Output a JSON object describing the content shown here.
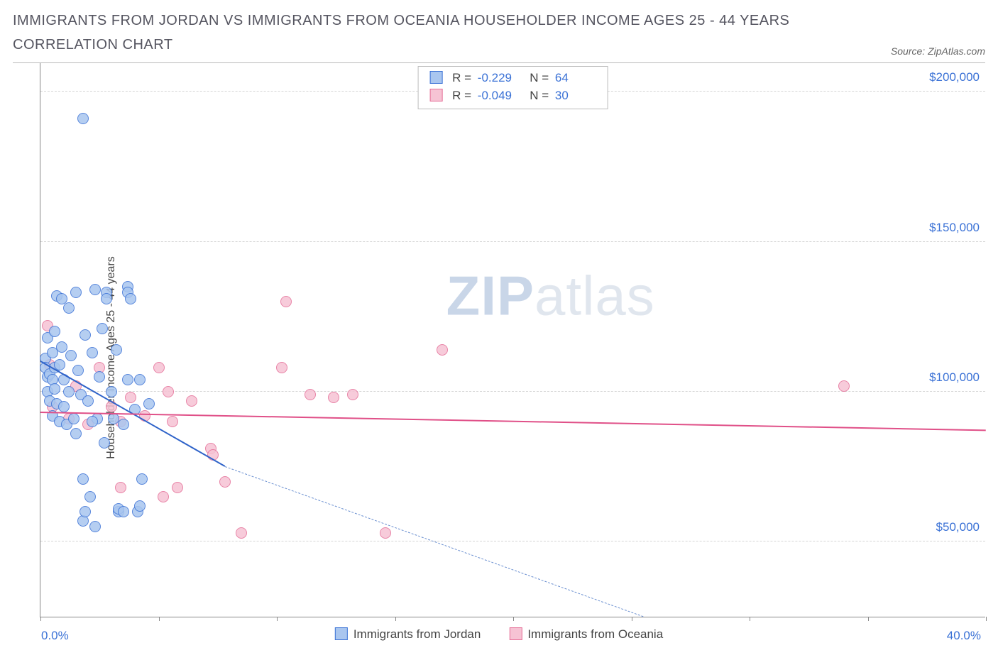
{
  "title": "IMMIGRANTS FROM JORDAN VS IMMIGRANTS FROM OCEANIA HOUSEHOLDER INCOME AGES 25 - 44 YEARS CORRELATION CHART",
  "source_label": "Source: ZipAtlas.com",
  "watermark": {
    "bold": "ZIP",
    "light": "atlas"
  },
  "yaxis_label": "Householder Income Ages 25 - 44 years",
  "chart": {
    "type": "scatter",
    "background_color": "#ffffff",
    "grid_color": "#d5d5d5",
    "title_fontsize": 20,
    "label_fontsize": 16,
    "tick_fontsize": 17,
    "tick_color": "#3b72d6",
    "xlim": [
      0,
      40
    ],
    "ylim": [
      25000,
      210000
    ],
    "y_ticks": [
      50000,
      100000,
      150000,
      200000
    ],
    "y_tick_labels": [
      "$50,000",
      "$100,000",
      "$150,000",
      "$200,000"
    ],
    "x_tick_positions": [
      0,
      5,
      10,
      15,
      20,
      25,
      30,
      35,
      40
    ],
    "x_min_label": "0.0%",
    "x_max_label": "40.0%",
    "marker_radius": 8,
    "marker_border_width": 1.2,
    "marker_fill_opacity": 0.35
  },
  "series": [
    {
      "name": "Immigrants from Jordan",
      "color_border": "#3b72d6",
      "color_fill": "#a9c6ef",
      "R": "-0.229",
      "N": "64",
      "trend": {
        "x1": 0,
        "y1": 110000,
        "x2": 7.8,
        "y2": 75000,
        "width": 2.4,
        "style": "solid",
        "color": "#2f63c9"
      },
      "trend_extend": {
        "x1": 7.8,
        "y1": 75000,
        "x2": 25.5,
        "y2": 25000,
        "width": 1.4,
        "style": "dashed",
        "color": "#6a8fd0"
      },
      "points": [
        [
          0.2,
          111000
        ],
        [
          0.2,
          108000
        ],
        [
          0.3,
          105000
        ],
        [
          0.3,
          118000
        ],
        [
          0.3,
          100000
        ],
        [
          0.4,
          106000
        ],
        [
          0.4,
          97000
        ],
        [
          0.5,
          113000
        ],
        [
          0.5,
          104000
        ],
        [
          0.5,
          92000
        ],
        [
          0.6,
          120000
        ],
        [
          0.6,
          108000
        ],
        [
          0.6,
          101000
        ],
        [
          0.7,
          132000
        ],
        [
          0.7,
          96000
        ],
        [
          0.8,
          109000
        ],
        [
          0.8,
          90000
        ],
        [
          0.9,
          131000
        ],
        [
          0.9,
          115000
        ],
        [
          1.0,
          104000
        ],
        [
          1.0,
          95000
        ],
        [
          1.1,
          89000
        ],
        [
          1.2,
          128000
        ],
        [
          1.2,
          100000
        ],
        [
          1.3,
          112000
        ],
        [
          1.4,
          91000
        ],
        [
          1.5,
          133000
        ],
        [
          1.5,
          86000
        ],
        [
          1.6,
          107000
        ],
        [
          1.7,
          99000
        ],
        [
          1.8,
          71000
        ],
        [
          1.8,
          57000
        ],
        [
          1.9,
          119000
        ],
        [
          1.9,
          60000
        ],
        [
          2.0,
          97000
        ],
        [
          2.1,
          65000
        ],
        [
          2.2,
          113000
        ],
        [
          2.3,
          55000
        ],
        [
          2.3,
          134000
        ],
        [
          2.4,
          91000
        ],
        [
          2.5,
          105000
        ],
        [
          2.6,
          121000
        ],
        [
          2.7,
          83000
        ],
        [
          2.8,
          133000
        ],
        [
          2.8,
          131000
        ],
        [
          3.0,
          100000
        ],
        [
          3.1,
          91000
        ],
        [
          3.2,
          114000
        ],
        [
          3.3,
          60000
        ],
        [
          3.3,
          61000
        ],
        [
          3.5,
          89000
        ],
        [
          3.7,
          135000
        ],
        [
          3.7,
          133000
        ],
        [
          3.7,
          104000
        ],
        [
          3.8,
          131000
        ],
        [
          4.0,
          94000
        ],
        [
          4.1,
          60000
        ],
        [
          4.2,
          62000
        ],
        [
          4.2,
          104000
        ],
        [
          4.3,
          71000
        ],
        [
          4.6,
          96000
        ],
        [
          1.8,
          191000
        ],
        [
          2.2,
          90000
        ],
        [
          3.5,
          60000
        ]
      ]
    },
    {
      "name": "Immigrants from Oceania",
      "color_border": "#e56f98",
      "color_fill": "#f6c3d4",
      "R": "-0.049",
      "N": "30",
      "trend": {
        "x1": 0,
        "y1": 93000,
        "x2": 40,
        "y2": 87000,
        "width": 2.2,
        "style": "solid",
        "color": "#e05088"
      },
      "points": [
        [
          0.3,
          122000
        ],
        [
          0.4,
          109000
        ],
        [
          0.5,
          95000
        ],
        [
          1.2,
          91000
        ],
        [
          1.5,
          102000
        ],
        [
          2.0,
          89000
        ],
        [
          2.5,
          108000
        ],
        [
          3.0,
          95000
        ],
        [
          3.4,
          90000
        ],
        [
          3.4,
          68000
        ],
        [
          3.8,
          98000
        ],
        [
          4.4,
          92000
        ],
        [
          5.0,
          108000
        ],
        [
          5.2,
          65000
        ],
        [
          5.4,
          100000
        ],
        [
          5.6,
          90000
        ],
        [
          5.8,
          68000
        ],
        [
          6.4,
          97000
        ],
        [
          7.2,
          81000
        ],
        [
          7.3,
          79000
        ],
        [
          7.8,
          70000
        ],
        [
          8.5,
          53000
        ],
        [
          10.2,
          108000
        ],
        [
          10.4,
          130000
        ],
        [
          11.4,
          99000
        ],
        [
          12.4,
          98000
        ],
        [
          13.2,
          99000
        ],
        [
          14.6,
          53000
        ],
        [
          17.0,
          114000
        ],
        [
          34.0,
          102000
        ]
      ]
    }
  ],
  "legend_bottom": [
    {
      "label": "Immigrants from Jordan",
      "fill": "#a9c6ef",
      "border": "#3b72d6"
    },
    {
      "label": "Immigrants from Oceania",
      "fill": "#f6c3d4",
      "border": "#e56f98"
    }
  ]
}
